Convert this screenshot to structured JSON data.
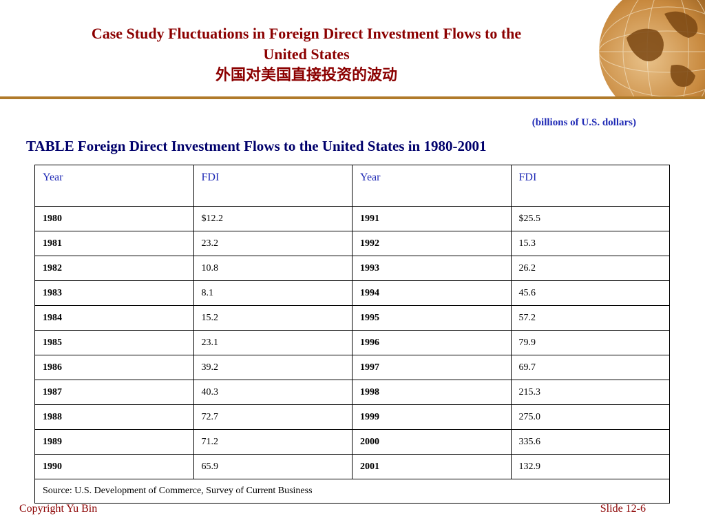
{
  "slide": {
    "title_en": "Case Study Fluctuations in Foreign Direct Investment Flows to the",
    "title_en_2": "United States",
    "title_cn": "外国对美国直接投资的波动",
    "units": "(billions of U.S. dollars)",
    "table_caption": "TABLE Foreign Direct Investment Flows to the United States in 1980-2001",
    "footer_left": "Copyright Yu Bin",
    "footer_right": "Slide 12-6"
  },
  "colors": {
    "title": "#8B0000",
    "header_text": "#1F2AB5",
    "rule": "#B07A2A"
  },
  "table": {
    "headers": [
      "Year",
      "FDI",
      "Year",
      "FDI"
    ],
    "rows": [
      [
        "1980",
        "$12.2",
        "1991",
        "$25.5"
      ],
      [
        "1981",
        "23.2",
        "1992",
        "15.3"
      ],
      [
        "1982",
        "10.8",
        "1993",
        "26.2"
      ],
      [
        "1983",
        "8.1",
        "1994",
        "45.6"
      ],
      [
        "1984",
        "15.2",
        "1995",
        "57.2"
      ],
      [
        "1985",
        "23.1",
        "1996",
        "79.9"
      ],
      [
        "1986",
        "39.2",
        "1997",
        "69.7"
      ],
      [
        "1987",
        "40.3",
        "1998",
        "215.3"
      ],
      [
        "1988",
        "72.7",
        "1999",
        "275.0"
      ],
      [
        "1989",
        "71.2",
        "2000",
        "335.6"
      ],
      [
        "1990",
        "65.9",
        "2001",
        "132.9"
      ]
    ],
    "source": "Source: U.S. Development of Commerce, Survey of Current Business"
  }
}
